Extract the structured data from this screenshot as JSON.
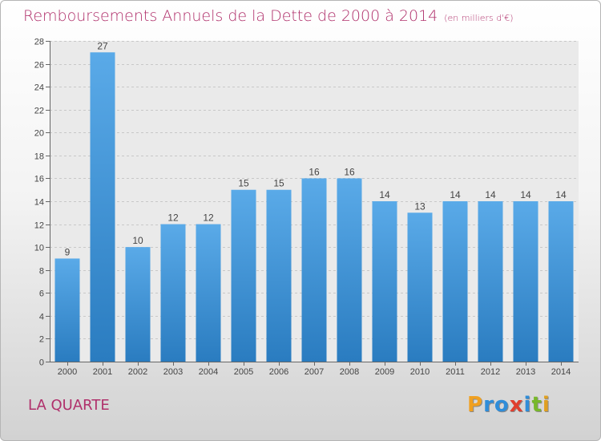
{
  "header": {
    "title": "Remboursements Annuels de la Dette de 2000 à 2014",
    "unit": "(en milliers d'€)"
  },
  "footer": {
    "commune": "LA QUARTE"
  },
  "logo": {
    "letters": [
      "P",
      "r",
      "o",
      "x",
      "i",
      "t",
      "i"
    ],
    "colors": [
      "#f0a020",
      "#2f8dd9",
      "#2f8dd9",
      "#e03e2e",
      "#2f8dd9",
      "#78b82a",
      "#e0a020"
    ]
  },
  "chart_data": {
    "type": "bar",
    "title": "Remboursements Annuels de la Dette de 2000 à 2014",
    "categories": [
      "2000",
      "2001",
      "2002",
      "2003",
      "2004",
      "2005",
      "2006",
      "2007",
      "2008",
      "2009",
      "2010",
      "2011",
      "2012",
      "2013",
      "2014"
    ],
    "values": [
      9,
      27,
      10,
      12,
      12,
      15,
      15,
      16,
      16,
      14,
      13,
      14,
      14,
      14,
      14
    ],
    "data_labels": [
      "9",
      "27",
      "10",
      "12",
      "12",
      "15",
      "15",
      "16",
      "16",
      "14",
      "13",
      "14",
      "14",
      "14",
      "14"
    ],
    "y_ticks": [
      "0",
      "2",
      "4",
      "6",
      "8",
      "10",
      "12",
      "14",
      "16",
      "18",
      "20",
      "22",
      "24",
      "26",
      "28"
    ],
    "ylim": [
      0,
      28
    ],
    "grid": true,
    "bar_color_top": "#5aaae8",
    "bar_color_bottom": "#2a7cc0"
  }
}
